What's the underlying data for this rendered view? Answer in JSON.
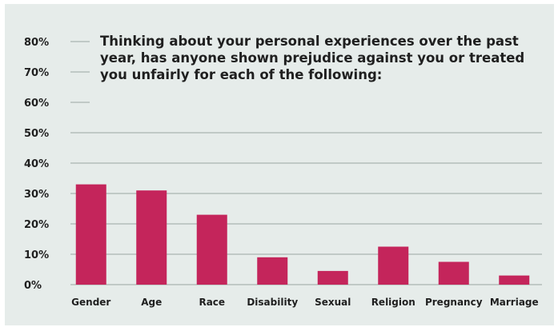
{
  "chart_data": {
    "type": "bar",
    "title": "Thinking about your personal experiences over the past year, has anyone shown prejudice against you or treated you unfairly for each of the following:",
    "categories": [
      "Gender",
      "Age",
      "Race",
      "Disability",
      "Sexual",
      "Religion",
      "Pregnancy",
      "Marriage"
    ],
    "values": [
      33,
      31,
      23,
      9,
      4.5,
      12.5,
      7.5,
      3
    ],
    "ylim": [
      0,
      80
    ],
    "yticks": [
      "0%",
      "10%",
      "20%",
      "30%",
      "40%",
      "50%",
      "60%",
      "70%",
      "80%"
    ],
    "grid": true,
    "bar_color": "#c4255b",
    "xlabel": "",
    "ylabel": ""
  }
}
